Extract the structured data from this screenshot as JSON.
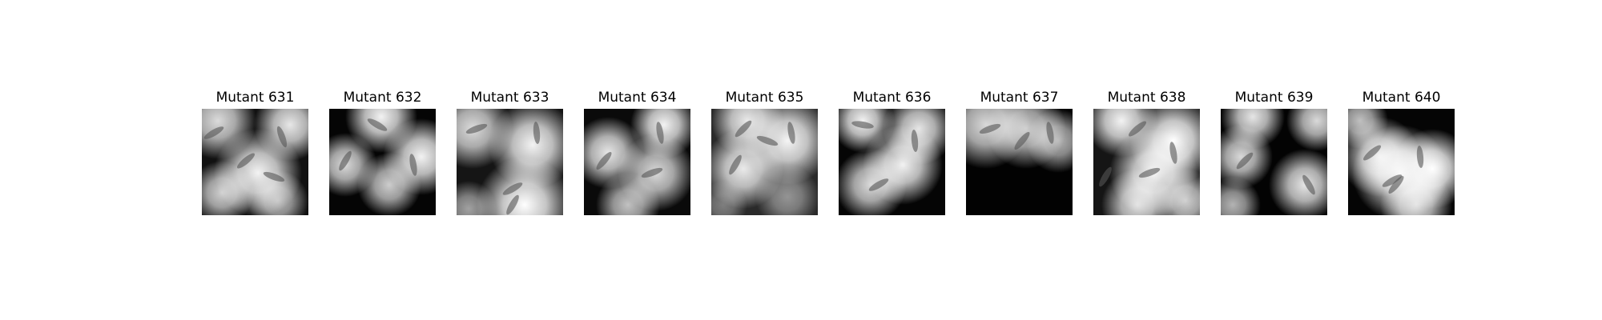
{
  "panels": [
    {
      "title": "Mutant 631",
      "bg": "#111",
      "blobs": [
        [
          20,
          15,
          48,
          0.85
        ],
        [
          110,
          20,
          45,
          0.9
        ],
        [
          70,
          80,
          55,
          0.95
        ],
        [
          25,
          105,
          40,
          0.8
        ],
        [
          95,
          115,
          38,
          0.7
        ]
      ],
      "rods": [
        [
          15,
          30,
          -30
        ],
        [
          100,
          35,
          70
        ],
        [
          55,
          65,
          -40
        ],
        [
          90,
          85,
          20
        ]
      ]
    },
    {
      "title": "Mutant 632",
      "bg": "#050505",
      "blobs": [
        [
          65,
          10,
          45,
          0.95
        ],
        [
          20,
          70,
          40,
          0.85
        ],
        [
          115,
          60,
          48,
          0.95
        ],
        [
          75,
          95,
          40,
          0.8
        ]
      ],
      "rods": [
        [
          20,
          65,
          -60
        ],
        [
          105,
          70,
          80
        ],
        [
          60,
          20,
          30
        ]
      ]
    },
    {
      "title": "Mutant 633",
      "bg": "#151515",
      "blobs": [
        [
          20,
          25,
          50,
          0.85
        ],
        [
          95,
          45,
          55,
          0.95
        ],
        [
          85,
          120,
          60,
          1.0
        ],
        [
          15,
          125,
          35,
          0.6
        ]
      ],
      "rods": [
        [
          25,
          25,
          -20
        ],
        [
          100,
          30,
          85
        ],
        [
          70,
          100,
          -30
        ],
        [
          70,
          120,
          -60
        ]
      ]
    },
    {
      "title": "Mutant 634",
      "bg": "#0a0a0a",
      "blobs": [
        [
          100,
          20,
          42,
          0.95
        ],
        [
          30,
          55,
          45,
          0.9
        ],
        [
          90,
          80,
          48,
          0.85
        ],
        [
          55,
          120,
          40,
          0.75
        ]
      ],
      "rods": [
        [
          95,
          30,
          80
        ],
        [
          25,
          65,
          -50
        ],
        [
          85,
          80,
          -20
        ]
      ]
    },
    {
      "title": "Mutant 635",
      "bg": "#2a2a2a",
      "blobs": [
        [
          45,
          15,
          45,
          0.9
        ],
        [
          95,
          40,
          55,
          0.95
        ],
        [
          40,
          75,
          50,
          0.9
        ],
        [
          95,
          110,
          40,
          0.5
        ],
        [
          15,
          120,
          30,
          0.4
        ]
      ],
      "rods": [
        [
          40,
          25,
          -45
        ],
        [
          100,
          30,
          80
        ],
        [
          30,
          70,
          -60
        ],
        [
          70,
          40,
          20
        ]
      ]
    },
    {
      "title": "Mutant 636",
      "bg": "#050505",
      "blobs": [
        [
          30,
          15,
          40,
          0.95
        ],
        [
          100,
          25,
          45,
          0.9
        ],
        [
          80,
          70,
          50,
          0.95
        ],
        [
          40,
          95,
          45,
          0.85
        ]
      ],
      "rods": [
        [
          95,
          40,
          85
        ],
        [
          50,
          95,
          -30
        ],
        [
          30,
          20,
          10
        ]
      ]
    },
    {
      "title": "Mutant 637",
      "bg": "#020202",
      "blobs": [
        [
          25,
          20,
          55,
          0.85
        ],
        [
          75,
          25,
          50,
          0.8
        ],
        [
          115,
          40,
          40,
          0.7
        ]
      ],
      "rods": [
        [
          30,
          25,
          -20
        ],
        [
          70,
          40,
          -50
        ],
        [
          105,
          30,
          80
        ]
      ]
    },
    {
      "title": "Mutant 638",
      "bg": "#151515",
      "blobs": [
        [
          35,
          15,
          45,
          0.95
        ],
        [
          100,
          40,
          55,
          1.0
        ],
        [
          75,
          80,
          55,
          0.95
        ],
        [
          55,
          120,
          45,
          0.85
        ],
        [
          115,
          115,
          40,
          0.8
        ]
      ],
      "rods": [
        [
          55,
          25,
          -40
        ],
        [
          100,
          55,
          80
        ],
        [
          15,
          85,
          -60
        ],
        [
          70,
          80,
          -20
        ]
      ]
    },
    {
      "title": "Mutant 639",
      "bg": "#030303",
      "blobs": [
        [
          40,
          10,
          40,
          0.9
        ],
        [
          120,
          15,
          38,
          0.85
        ],
        [
          25,
          60,
          40,
          0.85
        ],
        [
          105,
          95,
          45,
          0.9
        ],
        [
          15,
          120,
          35,
          0.7
        ]
      ],
      "rods": [
        [
          30,
          65,
          -45
        ],
        [
          110,
          95,
          60
        ]
      ]
    },
    {
      "title": "Mutant 640",
      "bg": "#050505",
      "blobs": [
        [
          15,
          15,
          35,
          0.75
        ],
        [
          65,
          80,
          60,
          0.95
        ],
        [
          105,
          75,
          50,
          1.0
        ],
        [
          40,
          60,
          50,
          0.9
        ],
        [
          85,
          120,
          45,
          0.85
        ]
      ],
      "rods": [
        [
          30,
          55,
          -40
        ],
        [
          55,
          90,
          -30
        ],
        [
          90,
          60,
          85
        ],
        [
          60,
          95,
          -50
        ]
      ]
    }
  ]
}
